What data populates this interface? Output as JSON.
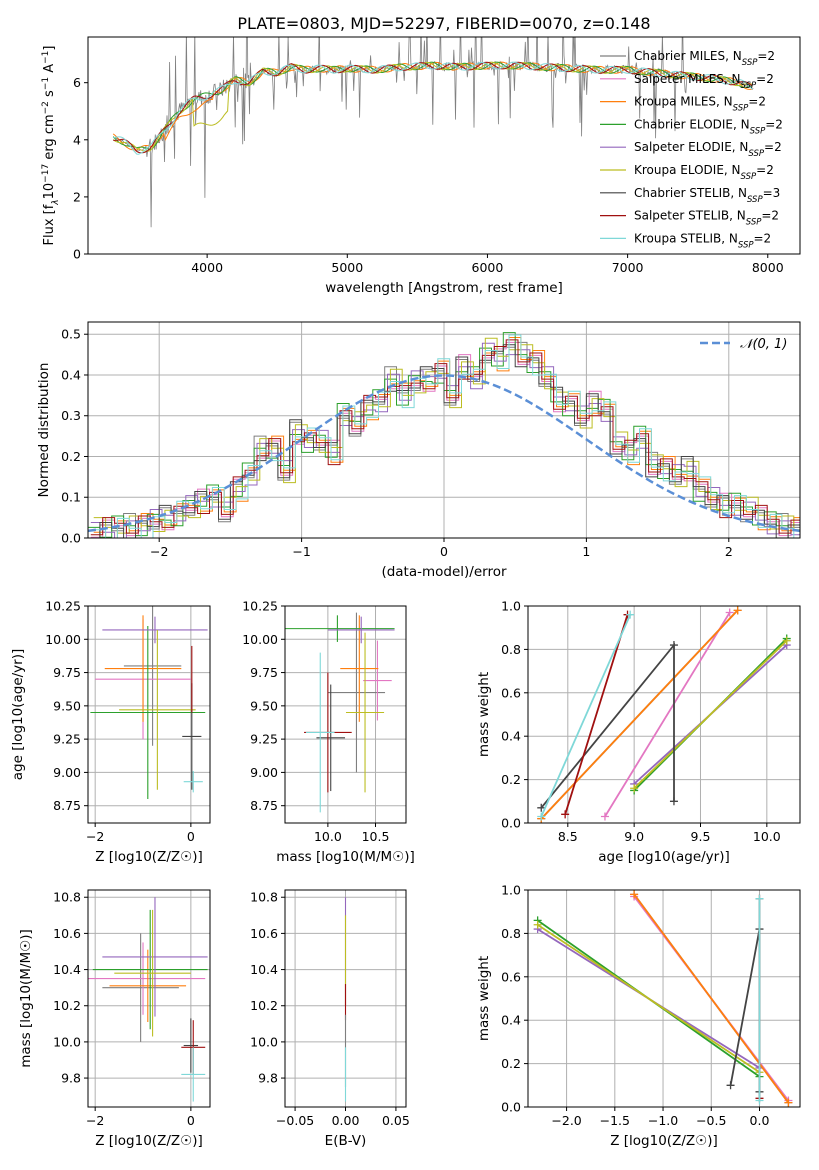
{
  "figure_title": "PLATE=0803, MJD=52297, FIBERID=0070, z=0.148",
  "colors": {
    "Chabrier MILES": "#7f7f7f",
    "Salpeter MILES": "#e377c2",
    "Kroupa MILES": "#ff7f0e",
    "Chabrier ELODIE": "#2ca02c",
    "Salpeter ELODIE": "#9467bd",
    "Kroupa ELODIE": "#bcbd22",
    "Chabrier STELIB": "#444444",
    "Salpeter STELIB": "#a01010",
    "Kroupa STELIB": "#7fd8d8",
    "data": "#808080",
    "gaussian": "#5b8fd6",
    "grid": "#b0b0b0"
  },
  "chart_data": [
    {
      "id": "spectrum",
      "type": "line",
      "title": "PLATE=0803, MJD=52297, FIBERID=0070, z=0.148",
      "xlabel": "wavelength [Angstrom, rest frame]",
      "ylabel": "Flux [fλ10^-17 erg cm^-2 s^-1 A^-1]",
      "xlim": [
        3150,
        8230
      ],
      "ylim": [
        0,
        7.6
      ],
      "xticks": [
        "4000",
        "5000",
        "6000",
        "7000",
        "8000"
      ],
      "yticks": [
        "0",
        "2",
        "4",
        "6"
      ],
      "grid": false,
      "legend_position": "top-right",
      "legend": [
        {
          "label": "Chabrier MILES, N",
          "sub": "SSP",
          "tail": "=2"
        },
        {
          "label": "Salpeter MILES, N",
          "sub": "SSP",
          "tail": "=2"
        },
        {
          "label": "Kroupa MILES, N",
          "sub": "SSP",
          "tail": "=2"
        },
        {
          "label": "Chabrier ELODIE, N",
          "sub": "SSP",
          "tail": "=2"
        },
        {
          "label": "Salpeter ELODIE, N",
          "sub": "SSP",
          "tail": "=2"
        },
        {
          "label": "Kroupa ELODIE, N",
          "sub": "SSP",
          "tail": "=2"
        },
        {
          "label": "Chabrier STELIB, N",
          "sub": "SSP",
          "tail": "=3"
        },
        {
          "label": "Salpeter STELIB, N",
          "sub": "SSP",
          "tail": "=2"
        },
        {
          "label": "Kroupa STELIB, N",
          "sub": "SSP",
          "tail": "=2"
        }
      ],
      "continuum": [
        [
          3330,
          4.1
        ],
        [
          3400,
          3.95
        ],
        [
          3500,
          3.6
        ],
        [
          3600,
          3.75
        ],
        [
          3700,
          4.35
        ],
        [
          3800,
          5.0
        ],
        [
          3900,
          5.4
        ],
        [
          4000,
          5.55
        ],
        [
          4100,
          5.75
        ],
        [
          4200,
          6.1
        ],
        [
          4300,
          6.0
        ],
        [
          4400,
          6.4
        ],
        [
          4500,
          6.35
        ],
        [
          4600,
          6.55
        ],
        [
          4700,
          6.45
        ],
        [
          4800,
          6.5
        ],
        [
          4900,
          6.45
        ],
        [
          5000,
          6.5
        ],
        [
          5200,
          6.45
        ],
        [
          5400,
          6.55
        ],
        [
          5600,
          6.6
        ],
        [
          5800,
          6.55
        ],
        [
          6000,
          6.6
        ],
        [
          6200,
          6.6
        ],
        [
          6400,
          6.55
        ],
        [
          6600,
          6.5
        ],
        [
          6800,
          6.45
        ],
        [
          7000,
          6.45
        ],
        [
          7200,
          6.35
        ],
        [
          7400,
          6.25
        ],
        [
          7600,
          6.15
        ],
        [
          7800,
          6.0
        ],
        [
          7900,
          5.8
        ]
      ]
    },
    {
      "id": "residuals",
      "type": "line",
      "xlabel": "(data-model)/error",
      "ylabel": "Normed distribution",
      "xlim": [
        -2.5,
        2.5
      ],
      "ylim": [
        0,
        0.53
      ],
      "xticks": [
        "−2",
        "−1",
        "0",
        "1",
        "2"
      ],
      "yticks": [
        "0.0",
        "0.1",
        "0.2",
        "0.3",
        "0.4",
        "0.5"
      ],
      "grid": true,
      "legend_position": "top-right",
      "legend": [
        "𝒩(0, 1)"
      ],
      "bin_width": 0.1,
      "bin_start": -2.5,
      "hist_values": [
        0.02,
        0.02,
        0.03,
        0.03,
        0.03,
        0.04,
        0.05,
        0.06,
        0.08,
        0.09,
        0.1,
        0.07,
        0.12,
        0.16,
        0.22,
        0.22,
        0.16,
        0.26,
        0.24,
        0.24,
        0.21,
        0.3,
        0.28,
        0.32,
        0.34,
        0.39,
        0.35,
        0.38,
        0.39,
        0.41,
        0.35,
        0.42,
        0.39,
        0.46,
        0.44,
        0.48,
        0.45,
        0.43,
        0.39,
        0.34,
        0.33,
        0.3,
        0.33,
        0.31,
        0.23,
        0.21,
        0.25,
        0.18,
        0.17,
        0.15,
        0.17,
        0.12,
        0.1,
        0.08,
        0.08,
        0.07,
        0.05,
        0.04,
        0.03,
        0.02
      ]
    },
    {
      "id": "age_vs_Z",
      "type": "scatter",
      "xlabel": "Z [log10(Z/Z☉)]",
      "ylabel": "age [log10(age/yr)]",
      "xlim": [
        -2.15,
        0.4
      ],
      "ylim": [
        8.62,
        10.25
      ],
      "xticks": [
        "−2",
        "0"
      ],
      "yticks": [
        "8.75",
        "9.00",
        "9.25",
        "9.50",
        "9.75",
        "10.00",
        "10.25"
      ],
      "grid": true,
      "points": [
        {
          "s": "Chabrier MILES",
          "x": -0.8,
          "xe": 0.6,
          "y": 9.8,
          "ye": 0.6
        },
        {
          "s": "Salpeter MILES",
          "x": -1.0,
          "xe": 1.0,
          "y": 9.7,
          "ye": 0.45
        },
        {
          "s": "Kroupa MILES",
          "x": -1.0,
          "xe": 0.8,
          "y": 9.78,
          "ye": 0.4
        },
        {
          "s": "Chabrier ELODIE",
          "x": -0.9,
          "xe": 1.2,
          "y": 9.45,
          "ye": 0.65
        },
        {
          "s": "Salpeter ELODIE",
          "x": -0.75,
          "xe": 1.1,
          "y": 10.07,
          "ye": 0.1
        },
        {
          "s": "Kroupa ELODIE",
          "x": -0.7,
          "xe": 0.8,
          "y": 9.47,
          "ye": 0.6
        },
        {
          "s": "Chabrier STELIB",
          "x": 0.02,
          "xe": 0.2,
          "y": 9.27,
          "ye": 0.4
        },
        {
          "s": "Salpeter STELIB",
          "x": 0.02,
          "xe": 0.0,
          "y": 9.7,
          "ye": 0.25
        },
        {
          "s": "Kroupa STELIB",
          "x": 0.05,
          "xe": 0.2,
          "y": 8.93,
          "ye": 0.08
        }
      ]
    },
    {
      "id": "age_vs_mass",
      "type": "scatter",
      "xlabel": "mass [log10(M/M☉)]",
      "ylabel": "",
      "xlim": [
        9.55,
        10.82
      ],
      "ylim": [
        8.62,
        10.25
      ],
      "xticks": [
        "10.0",
        "10.5"
      ],
      "yticks": [
        "8.75",
        "9.00",
        "9.25",
        "9.50",
        "9.75",
        "10.00",
        "10.25"
      ],
      "grid": true,
      "points": [
        {
          "s": "Chabrier MILES",
          "x": 10.3,
          "xe": 0.3,
          "y": 9.6,
          "ye": 0.6
        },
        {
          "s": "Salpeter MILES",
          "x": 10.52,
          "xe": 0.15,
          "y": 9.69,
          "ye": 0.3
        },
        {
          "s": "Kroupa MILES",
          "x": 10.33,
          "xe": 0.2,
          "y": 9.78,
          "ye": 0.4
        },
        {
          "s": "Chabrier ELODIE",
          "x": 10.1,
          "xe": 0.6,
          "y": 10.08,
          "ye": 0.1
        },
        {
          "s": "Salpeter ELODIE",
          "x": 10.35,
          "xe": 0.35,
          "y": 10.07,
          "ye": 0.1
        },
        {
          "s": "Kroupa ELODIE",
          "x": 10.39,
          "xe": 0.2,
          "y": 9.45,
          "ye": 0.6
        },
        {
          "s": "Chabrier STELIB",
          "x": 10.03,
          "xe": 0.15,
          "y": 9.26,
          "ye": 0.4
        },
        {
          "s": "Salpeter STELIB",
          "x": 10.0,
          "xe": 0.25,
          "y": 9.3,
          "ye": 0.45
        },
        {
          "s": "Kroupa STELIB",
          "x": 9.92,
          "xe": 0.15,
          "y": 9.3,
          "ye": 0.6
        }
      ]
    },
    {
      "id": "massweight_vs_age",
      "type": "line",
      "xlabel": "age [log10(age/yr)]",
      "ylabel": "mass weight",
      "xlim": [
        8.2,
        10.25
      ],
      "ylim": [
        0,
        1.0
      ],
      "xticks": [
        "8.5",
        "9.0",
        "9.5",
        "10.0"
      ],
      "yticks": [
        "0.0",
        "0.2",
        "0.4",
        "0.6",
        "0.8",
        "1.0"
      ],
      "grid": true,
      "series": [
        {
          "s": "Chabrier MILES",
          "x": [
            8.3,
            9.78
          ],
          "y": [
            0.02,
            0.98
          ]
        },
        {
          "s": "Salpeter MILES",
          "x": [
            8.78,
            9.72
          ],
          "y": [
            0.03,
            0.97
          ]
        },
        {
          "s": "Kroupa MILES",
          "x": [
            8.3,
            9.78
          ],
          "y": [
            0.02,
            0.98
          ]
        },
        {
          "s": "Chabrier ELODIE",
          "x": [
            9.0,
            10.15
          ],
          "y": [
            0.15,
            0.85
          ]
        },
        {
          "s": "Salpeter ELODIE",
          "x": [
            9.0,
            10.15
          ],
          "y": [
            0.18,
            0.82
          ]
        },
        {
          "s": "Kroupa ELODIE",
          "x": [
            9.0,
            10.15
          ],
          "y": [
            0.16,
            0.84
          ]
        },
        {
          "s": "Chabrier STELIB",
          "x": [
            8.3,
            9.3,
            9.3
          ],
          "y": [
            0.07,
            0.82,
            0.1
          ]
        },
        {
          "s": "Salpeter STELIB",
          "x": [
            8.48,
            8.95
          ],
          "y": [
            0.04,
            0.96
          ]
        },
        {
          "s": "Kroupa STELIB",
          "x": [
            8.3,
            8.97
          ],
          "y": [
            0.03,
            0.96
          ]
        }
      ]
    },
    {
      "id": "mass_vs_Z",
      "type": "scatter",
      "xlabel": "Z [log10(Z/Z☉)]",
      "ylabel": "mass [log10(M/M☉)]",
      "xlim": [
        -2.15,
        0.4
      ],
      "ylim": [
        9.64,
        10.84
      ],
      "xticks": [
        "−2",
        "0"
      ],
      "yticks": [
        "9.8",
        "10.0",
        "10.2",
        "10.4",
        "10.6",
        "10.8"
      ],
      "grid": true,
      "points": [
        {
          "s": "Chabrier MILES",
          "x": -1.05,
          "xe": 0.8,
          "y": 10.3,
          "ye": 0.3
        },
        {
          "s": "Salpeter MILES",
          "x": -1.0,
          "xe": 1.3,
          "y": 10.35,
          "ye": 0.2
        },
        {
          "s": "Kroupa MILES",
          "x": -0.9,
          "xe": 0.8,
          "y": 10.31,
          "ye": 0.2
        },
        {
          "s": "Chabrier ELODIE",
          "x": -0.85,
          "xe": 1.2,
          "y": 10.4,
          "ye": 0.33
        },
        {
          "s": "Salpeter ELODIE",
          "x": -0.75,
          "xe": 1.1,
          "y": 10.47,
          "ye": 0.33
        },
        {
          "s": "Kroupa ELODIE",
          "x": -0.8,
          "xe": 0.8,
          "y": 10.38,
          "ye": 0.35
        },
        {
          "s": "Chabrier STELIB",
          "x": 0.0,
          "xe": 0.15,
          "y": 9.98,
          "ye": 0.15
        },
        {
          "s": "Salpeter STELIB",
          "x": 0.05,
          "xe": 0.25,
          "y": 9.97,
          "ye": 0.15
        },
        {
          "s": "Kroupa STELIB",
          "x": 0.05,
          "xe": 0.25,
          "y": 9.82,
          "ye": 0.15
        }
      ]
    },
    {
      "id": "mass_vs_EBV",
      "type": "scatter",
      "xlabel": "E(B-V)",
      "ylabel": "",
      "xlim": [
        -0.06,
        0.06
      ],
      "ylim": [
        9.64,
        10.84
      ],
      "xticks": [
        "−0.05",
        "0.00",
        "0.05"
      ],
      "yticks": [
        "9.8",
        "10.0",
        "10.2",
        "10.4",
        "10.6",
        "10.8"
      ],
      "grid": true,
      "points": [
        {
          "s": "Salpeter ELODIE",
          "x": 0.0,
          "y": 10.5,
          "ye": 0.3
        },
        {
          "s": "Kroupa ELODIE",
          "x": 0.0,
          "y": 10.45,
          "ye": 0.25
        },
        {
          "s": "Salpeter STELIB",
          "x": 0.0,
          "y": 10.22,
          "ye": 0.1
        },
        {
          "s": "Chabrier MILES",
          "x": 0.0,
          "y": 9.95,
          "ye": 0.2
        },
        {
          "s": "Kroupa STELIB",
          "x": 0.0,
          "y": 9.82,
          "ye": 0.15
        }
      ]
    },
    {
      "id": "massweight_vs_Z",
      "type": "line",
      "xlabel": "Z [log10(Z/Z☉)]",
      "ylabel": "mass weight",
      "xlim": [
        -2.4,
        0.42
      ],
      "ylim": [
        0,
        1.0
      ],
      "xticks": [
        "−2.0",
        "−1.5",
        "−1.0",
        "−0.5",
        "0.0"
      ],
      "yticks": [
        "0.0",
        "0.2",
        "0.4",
        "0.6",
        "0.8",
        "1.0"
      ],
      "grid": true,
      "series": [
        {
          "s": "Chabrier ELODIE",
          "x": [
            -2.3,
            0.0
          ],
          "y": [
            0.86,
            0.14
          ]
        },
        {
          "s": "Salpeter ELODIE",
          "x": [
            -2.3,
            0.0
          ],
          "y": [
            0.82,
            0.18
          ]
        },
        {
          "s": "Kroupa ELODIE",
          "x": [
            -2.3,
            0.0
          ],
          "y": [
            0.84,
            0.16
          ]
        },
        {
          "s": "Chabrier MILES",
          "x": [
            -1.3,
            0.3
          ],
          "y": [
            0.98,
            0.02
          ]
        },
        {
          "s": "Salpeter MILES",
          "x": [
            -1.3,
            0.3
          ],
          "y": [
            0.97,
            0.03
          ]
        },
        {
          "s": "Kroupa MILES",
          "x": [
            -1.3,
            0.3
          ],
          "y": [
            0.98,
            0.02
          ]
        },
        {
          "s": "Chabrier STELIB",
          "x": [
            -0.3,
            0.0,
            0.0
          ],
          "y": [
            0.1,
            0.82,
            0.07
          ]
        },
        {
          "s": "Salpeter STELIB",
          "x": [
            0.0,
            0.0
          ],
          "y": [
            0.04,
            0.96
          ]
        },
        {
          "s": "Kroupa STELIB",
          "x": [
            0.0,
            0.0
          ],
          "y": [
            0.03,
            0.96
          ]
        }
      ]
    }
  ]
}
